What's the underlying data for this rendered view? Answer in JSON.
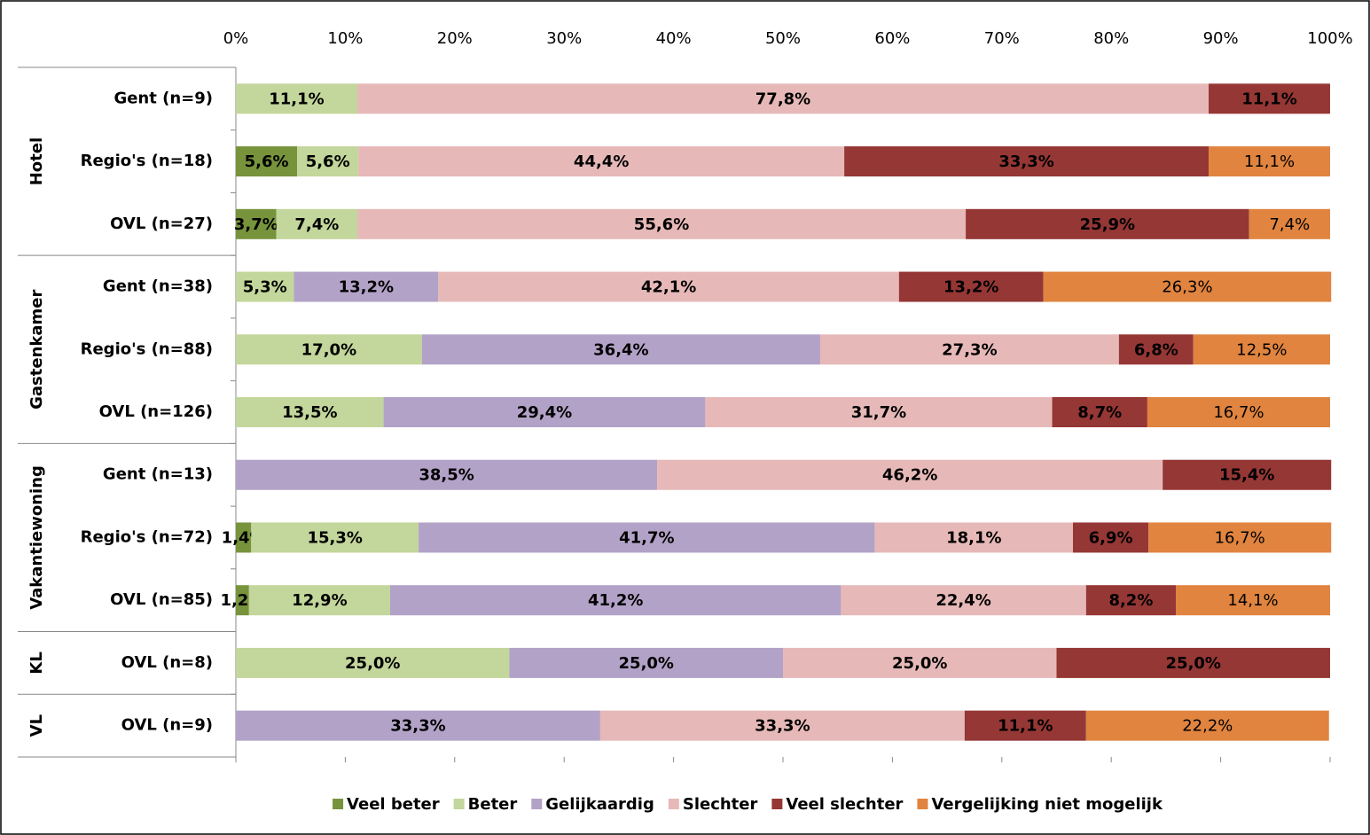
{
  "chart_data": {
    "type": "stacked_barh",
    "categories": [
      "Gent (n=9)",
      "Regio's (n=18)",
      "OVL (n=27)",
      "Gent (n=38)",
      "Regio's (n=88)",
      "OVL (n=126)",
      "Gent (n=13)",
      "Regio's (n=72)",
      "OVL (n=85)",
      "OVL (n=8)",
      "OVL (n=9)"
    ],
    "groups": [
      {
        "name": "Hotel",
        "span": 3
      },
      {
        "name": "Gastenkamer",
        "span": 3
      },
      {
        "name": "Vakantiewoning",
        "span": 3
      },
      {
        "name": "KL",
        "span": 1
      },
      {
        "name": "VL",
        "span": 1
      }
    ],
    "series": [
      {
        "name": "Veel beter",
        "color": "#77933c",
        "label_color": "#000000",
        "label_weight": "bold",
        "values": [
          null,
          5.6,
          3.7,
          null,
          null,
          null,
          null,
          1.4,
          1.2,
          null,
          null
        ],
        "value_labels": [
          null,
          "5,6%",
          "3,7%",
          null,
          null,
          null,
          null,
          "1,4%",
          "1,2%",
          null,
          null
        ]
      },
      {
        "name": "Beter",
        "color": "#c3d69b",
        "label_color": "#000000",
        "label_weight": "bold",
        "values": [
          11.1,
          5.6,
          7.4,
          5.3,
          17.0,
          13.5,
          null,
          15.3,
          12.9,
          25.0,
          null
        ],
        "value_labels": [
          "11,1%",
          "5,6%",
          "7,4%",
          "5,3%",
          "17,0%",
          "13,5%",
          null,
          "15,3%",
          "12,9%",
          "25,0%",
          null
        ]
      },
      {
        "name": "Gelijkaardig",
        "color": "#b3a2c7",
        "label_color": "#000000",
        "label_weight": "bold",
        "values": [
          null,
          null,
          null,
          13.2,
          36.4,
          29.4,
          38.5,
          41.7,
          41.2,
          25.0,
          33.3
        ],
        "value_labels": [
          null,
          null,
          null,
          "13,2%",
          "36,4%",
          "29,4%",
          "38,5%",
          "41,7%",
          "41,2%",
          "25,0%",
          "33,3%"
        ]
      },
      {
        "name": "Slechter",
        "color": "#e6b9b8",
        "label_color": "#000000",
        "label_weight": "bold",
        "values": [
          77.8,
          44.4,
          55.6,
          42.1,
          27.3,
          31.7,
          46.2,
          18.1,
          22.4,
          25.0,
          33.3
        ],
        "value_labels": [
          "77,8%",
          "44,4%",
          "55,6%",
          "42,1%",
          "27,3%",
          "31,7%",
          "46,2%",
          "18,1%",
          "22,4%",
          "25,0%",
          "33,3%"
        ]
      },
      {
        "name": "Veel slechter",
        "color": "#953735",
        "label_color": "#ffffff",
        "label_weight": "bold",
        "values": [
          11.1,
          33.3,
          25.9,
          13.2,
          6.8,
          8.7,
          15.4,
          6.9,
          8.2,
          25.0,
          11.1
        ],
        "value_labels": [
          "11,1%",
          "33,3%",
          "25,9%",
          "13,2%",
          "6,8%",
          "8,7%",
          "15,4%",
          "6,9%",
          "8,2%",
          "25,0%",
          "11,1%"
        ]
      },
      {
        "name": "Vergelijking niet mogelijk",
        "color": "#e0843f",
        "label_color": "#000000",
        "label_weight": "normal",
        "values": [
          null,
          11.1,
          7.4,
          26.3,
          12.5,
          16.7,
          null,
          16.7,
          14.1,
          null,
          22.2
        ],
        "value_labels": [
          null,
          "11,1%",
          "7,4%",
          "26,3%",
          "12,5%",
          "16,7%",
          null,
          "16,7%",
          "14,1%",
          null,
          "22,2%"
        ]
      }
    ],
    "xlim": [
      0,
      100
    ],
    "xticks": [
      {
        "value": 0,
        "label": "0%"
      },
      {
        "value": 10,
        "label": "10%"
      },
      {
        "value": 20,
        "label": "20%"
      },
      {
        "value": 30,
        "label": "30%"
      },
      {
        "value": 40,
        "label": "40%"
      },
      {
        "value": 50,
        "label": "50%"
      },
      {
        "value": 60,
        "label": "60%"
      },
      {
        "value": 70,
        "label": "70%"
      },
      {
        "value": 80,
        "label": "80%"
      },
      {
        "value": 90,
        "label": "90%"
      },
      {
        "value": 100,
        "label": "100%"
      }
    ],
    "legend": "bottom"
  }
}
